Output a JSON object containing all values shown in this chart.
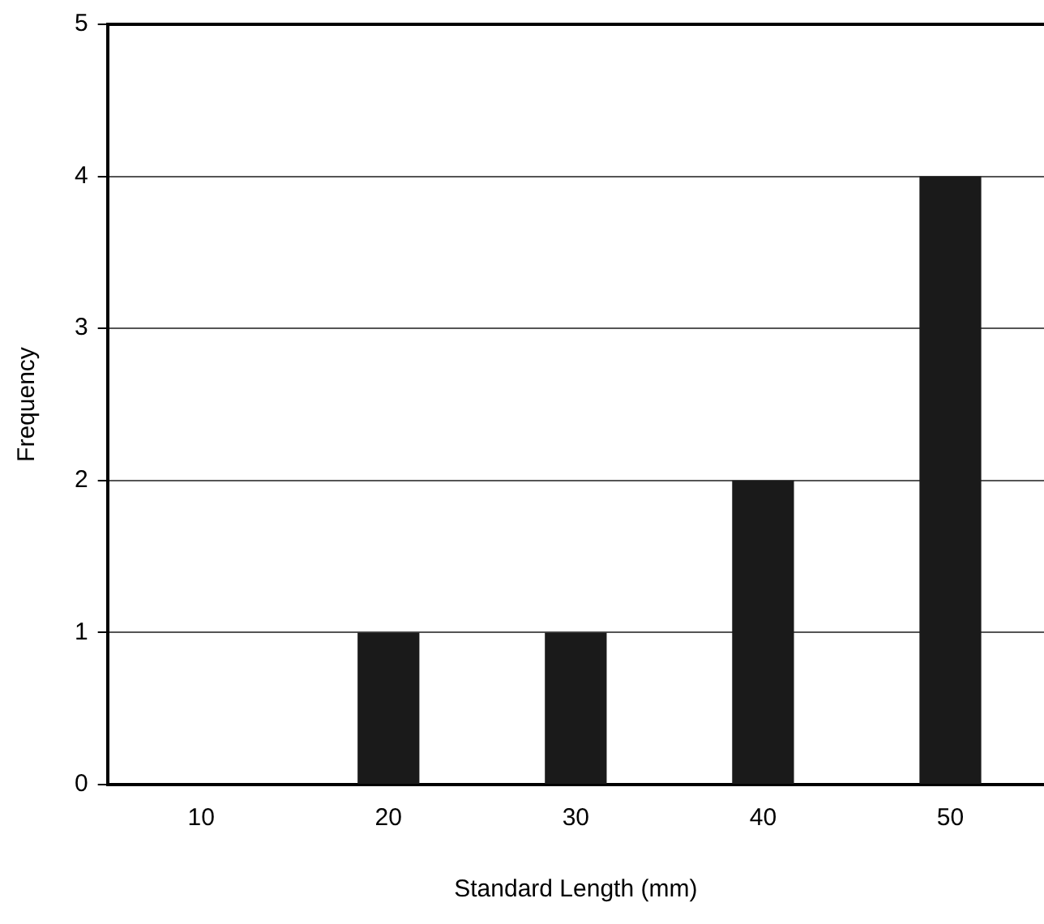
{
  "chart_data": {
    "type": "bar",
    "xlabel": "Standard Length (mm)",
    "ylabel": "Frequency",
    "categories": [
      "10",
      "20",
      "30",
      "40",
      "50"
    ],
    "values": [
      0,
      1,
      1,
      2,
      4
    ],
    "color": "#1a1a1a",
    "ylim": [
      0,
      5
    ],
    "yticks": [
      0,
      1,
      2,
      3,
      4,
      5
    ],
    "grid": "y",
    "legend": false
  }
}
